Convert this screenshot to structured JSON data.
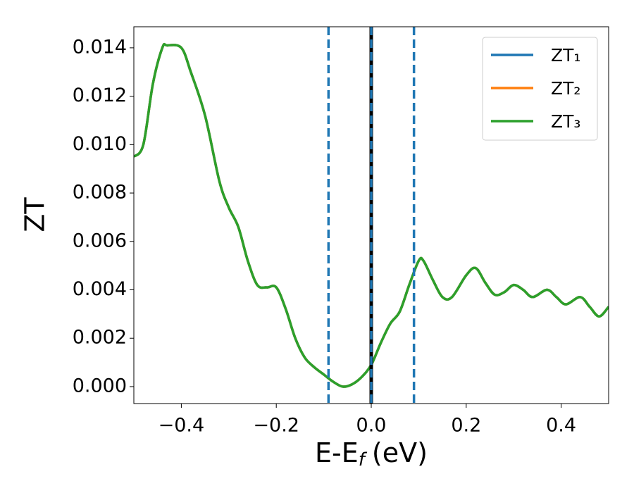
{
  "chart_data": {
    "type": "line",
    "xlabel": "E-E",
    "xlabel_sub": "f",
    "xlabel_tail": "(eV)",
    "ylabel": "ZT",
    "x": [
      -0.5,
      -0.48,
      -0.46,
      -0.44,
      -0.43,
      -0.4,
      -0.38,
      -0.35,
      -0.32,
      -0.3,
      -0.28,
      -0.26,
      -0.24,
      -0.22,
      -0.2,
      -0.18,
      -0.16,
      -0.14,
      -0.12,
      -0.1,
      -0.08,
      -0.06,
      -0.04,
      -0.02,
      0,
      0.02,
      0.04,
      0.06,
      0.08,
      0.1,
      0.11,
      0.13,
      0.15,
      0.17,
      0.2,
      0.22,
      0.24,
      0.26,
      0.28,
      0.3,
      0.32,
      0.34,
      0.37,
      0.39,
      0.41,
      0.44,
      0.46,
      0.48,
      0.5
    ],
    "series": [
      {
        "name": "ZT₁",
        "color": "#1f77b4",
        "values": [
          0.0095,
          0.01,
          0.0125,
          0.014,
          0.0141,
          0.014,
          0.013,
          0.0112,
          0.0085,
          0.0074,
          0.0066,
          0.0052,
          0.0042,
          0.0041,
          0.0041,
          0.0032,
          0.002,
          0.0012,
          0.0008,
          0.0005,
          0.0002,
          0.0,
          0.0001,
          0.0004,
          0.0009,
          0.0018,
          0.0026,
          0.0031,
          0.0042,
          0.0052,
          0.0052,
          0.0044,
          0.0037,
          0.0037,
          0.0046,
          0.0049,
          0.0043,
          0.0038,
          0.0039,
          0.0042,
          0.004,
          0.0037,
          0.004,
          0.0037,
          0.0034,
          0.0037,
          0.0033,
          0.0029,
          0.0033
        ]
      },
      {
        "name": "ZT₂",
        "color": "#ff7f0e",
        "values": [
          0.0095,
          0.01,
          0.0125,
          0.014,
          0.0141,
          0.014,
          0.013,
          0.0112,
          0.0085,
          0.0074,
          0.0066,
          0.0052,
          0.0042,
          0.0041,
          0.0041,
          0.0032,
          0.002,
          0.0012,
          0.0008,
          0.0005,
          0.0002,
          0.0,
          0.0001,
          0.0004,
          0.0009,
          0.0018,
          0.0026,
          0.0031,
          0.0042,
          0.0052,
          0.0052,
          0.0044,
          0.0037,
          0.0037,
          0.0046,
          0.0049,
          0.0043,
          0.0038,
          0.0039,
          0.0042,
          0.004,
          0.0037,
          0.004,
          0.0037,
          0.0034,
          0.0037,
          0.0033,
          0.0029,
          0.0033
        ]
      },
      {
        "name": "ZT₃",
        "color": "#2ca02c",
        "values": [
          0.0095,
          0.01,
          0.0125,
          0.014,
          0.0141,
          0.014,
          0.013,
          0.0112,
          0.0085,
          0.0074,
          0.0066,
          0.0052,
          0.0042,
          0.0041,
          0.0041,
          0.0032,
          0.002,
          0.0012,
          0.0008,
          0.0005,
          0.0002,
          0.0,
          0.0001,
          0.0004,
          0.0009,
          0.0018,
          0.0026,
          0.0031,
          0.0042,
          0.0052,
          0.0052,
          0.0044,
          0.0037,
          0.0037,
          0.0046,
          0.0049,
          0.0043,
          0.0038,
          0.0039,
          0.0042,
          0.004,
          0.0037,
          0.004,
          0.0037,
          0.0034,
          0.0037,
          0.0033,
          0.0029,
          0.0033
        ]
      }
    ],
    "vlines": [
      {
        "x": -0.09,
        "color": "#1f77b4",
        "style": "dashed"
      },
      {
        "x": 0.09,
        "color": "#1f77b4",
        "style": "dashed"
      },
      {
        "x": 0,
        "color": "#000000",
        "style": "solid"
      },
      {
        "x": 0,
        "color": "#1f77b4",
        "style": "dashed"
      }
    ],
    "xlim": [
      -0.5,
      0.5
    ],
    "ylim": [
      -0.0007,
      0.01487
    ],
    "xticks": [
      {
        "value": -0.4,
        "label": "−0.4"
      },
      {
        "value": -0.2,
        "label": "−0.2"
      },
      {
        "value": 0,
        "label": "0.0"
      },
      0.2,
      0.4
    ],
    "yticks": [
      {
        "value": 0,
        "label": "0.000"
      },
      {
        "value": 0.002,
        "label": "0.002"
      },
      {
        "value": 0.004,
        "label": "0.004"
      },
      {
        "value": 0.006,
        "label": "0.006"
      },
      {
        "value": 0.008,
        "label": "0.008"
      },
      {
        "value": 0.01,
        "label": "0.010"
      },
      {
        "value": 0.012,
        "label": "0.012"
      },
      {
        "value": 0.014,
        "label": "0.014"
      }
    ],
    "legend": "upper right",
    "grid": false
  }
}
